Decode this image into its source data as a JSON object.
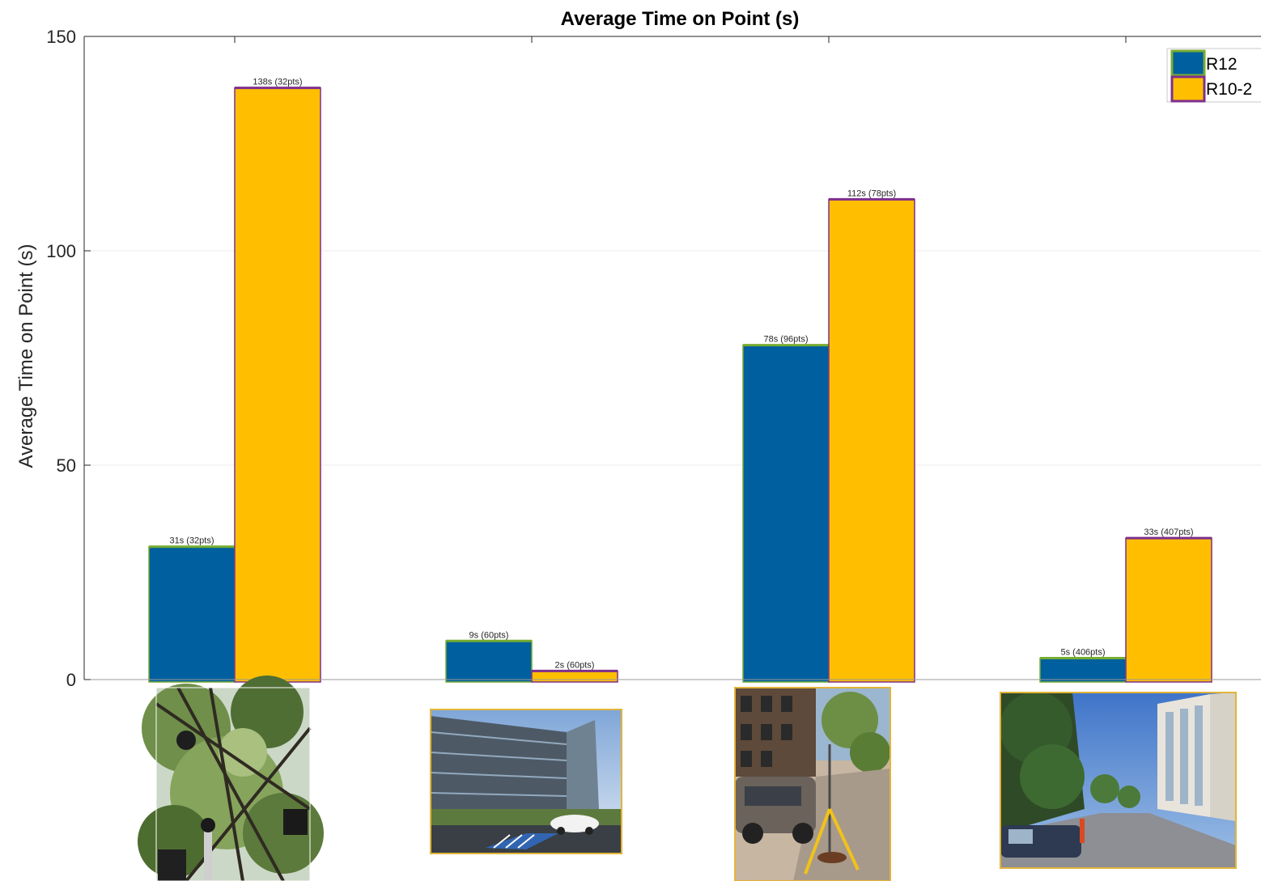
{
  "colors": {
    "r12_fill": "#005F9E",
    "r12_edge": "#77AC30",
    "r102_fill": "#FFBF00",
    "r102_edge": "#7E2F8E",
    "photo_border": "#E2B43A",
    "grid": "#ebebeb",
    "axis": "#262626"
  },
  "chart_data": {
    "type": "bar",
    "title": "Average Time on Point (s)",
    "xlabel": "",
    "ylabel": "Average Time on Point (s)",
    "ylim": [
      0,
      150
    ],
    "yticks": [
      0,
      50,
      100,
      150
    ],
    "ytick_labels": [
      "0",
      "50",
      "100",
      "150"
    ],
    "grid": true,
    "legend_position": "top-right",
    "categories": [
      "",
      "",
      "",
      ""
    ],
    "series": [
      {
        "name": "R12",
        "values": [
          31,
          9,
          78,
          5
        ],
        "labels": [
          "31s (32pts)",
          "9s (60pts)",
          "78s (96pts)",
          "5s (406pts)"
        ]
      },
      {
        "name": "R10-2",
        "values": [
          138,
          2,
          112,
          33
        ],
        "labels": [
          "138s (32pts)",
          "2s (60pts)",
          "112s (78pts)",
          "33s (407pts)"
        ]
      }
    ],
    "category_images": [
      "tree-canopy-photo",
      "office-building-photo",
      "urban-street-trees-photo",
      "open-street-photo"
    ]
  }
}
